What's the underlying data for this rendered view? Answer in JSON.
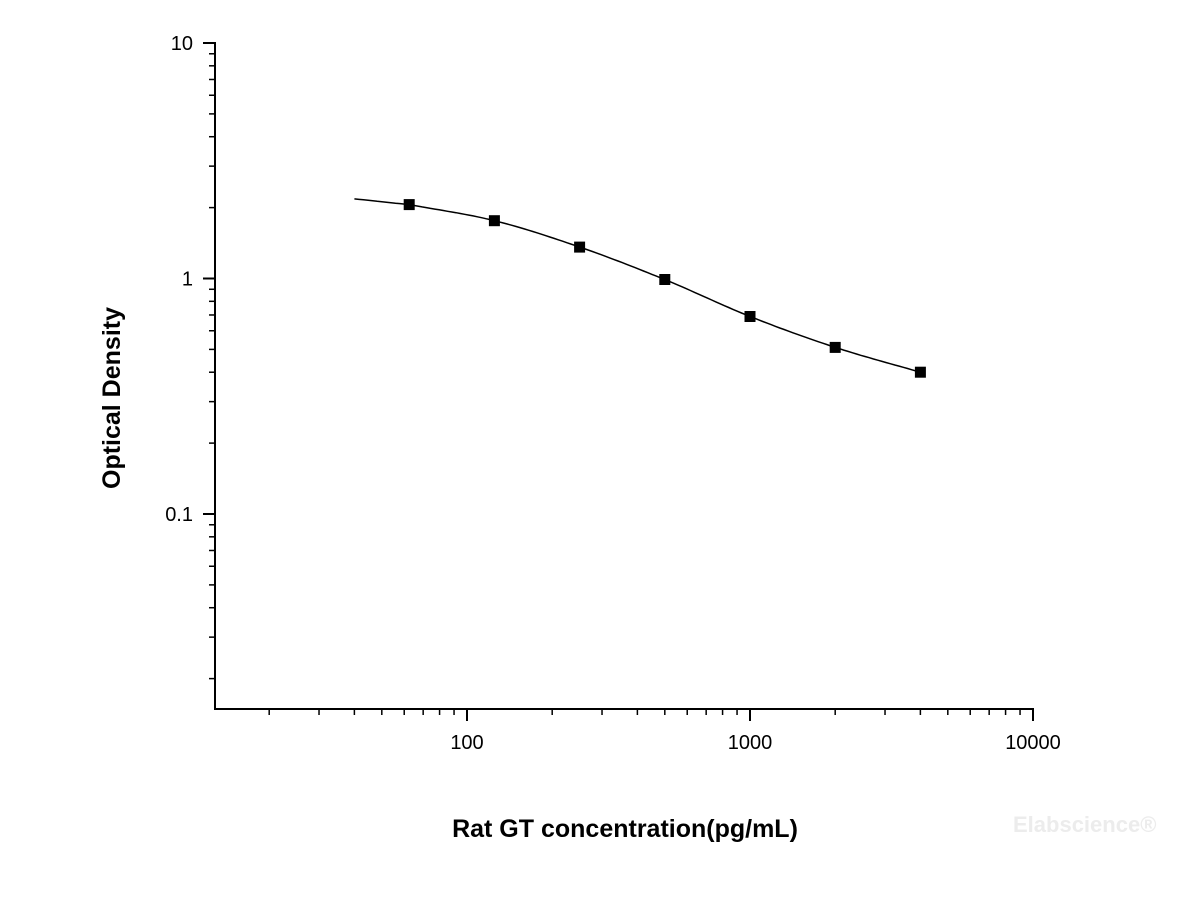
{
  "chart_data": {
    "type": "scatter",
    "title": "",
    "xlabel": "Rat GT concentration(pg/mL)",
    "ylabel": "Optical Density",
    "xscale": "log",
    "yscale": "log",
    "xlim": [
      11,
      10000
    ],
    "ylim": [
      0.018,
      10
    ],
    "xticks": [
      100,
      1000,
      10000
    ],
    "xtick_labels": [
      "100",
      "1000",
      "10000"
    ],
    "yticks": [
      0.1,
      1,
      10
    ],
    "ytick_labels": [
      "0.1",
      "1",
      "10"
    ],
    "grid": false,
    "legend": "none",
    "series": [
      {
        "marker": "square",
        "color": "#000000",
        "x": [
          62.5,
          125,
          250,
          500,
          1000,
          2000,
          4000
        ],
        "y": [
          2.06,
          1.76,
          1.36,
          0.99,
          0.69,
          0.51,
          0.4
        ]
      }
    ],
    "fit_curve": {
      "type": "four-parameter logistic",
      "x_range": [
        40,
        4000
      ],
      "color": "#000000"
    }
  },
  "watermark": "Elabscience®"
}
